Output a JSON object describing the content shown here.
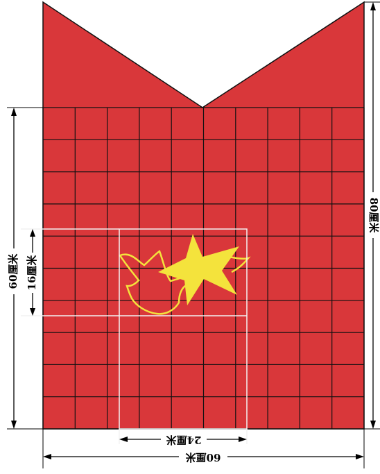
{
  "colors": {
    "flag_red": "#d9373a",
    "emblem_yellow": "#f4e33c",
    "grid_line": "#111111",
    "guide_line": "#f2f2f2",
    "dimension_line": "#000000"
  },
  "grid": {
    "columns": 10,
    "rows": 10
  },
  "dimensions": {
    "bottom_width": "60厘米",
    "inner_width": "24厘米",
    "left_height": "60厘米",
    "inner_height": "16厘米",
    "right_height": "80厘米"
  },
  "emblem": {
    "shapes": [
      "star",
      "dove"
    ]
  }
}
